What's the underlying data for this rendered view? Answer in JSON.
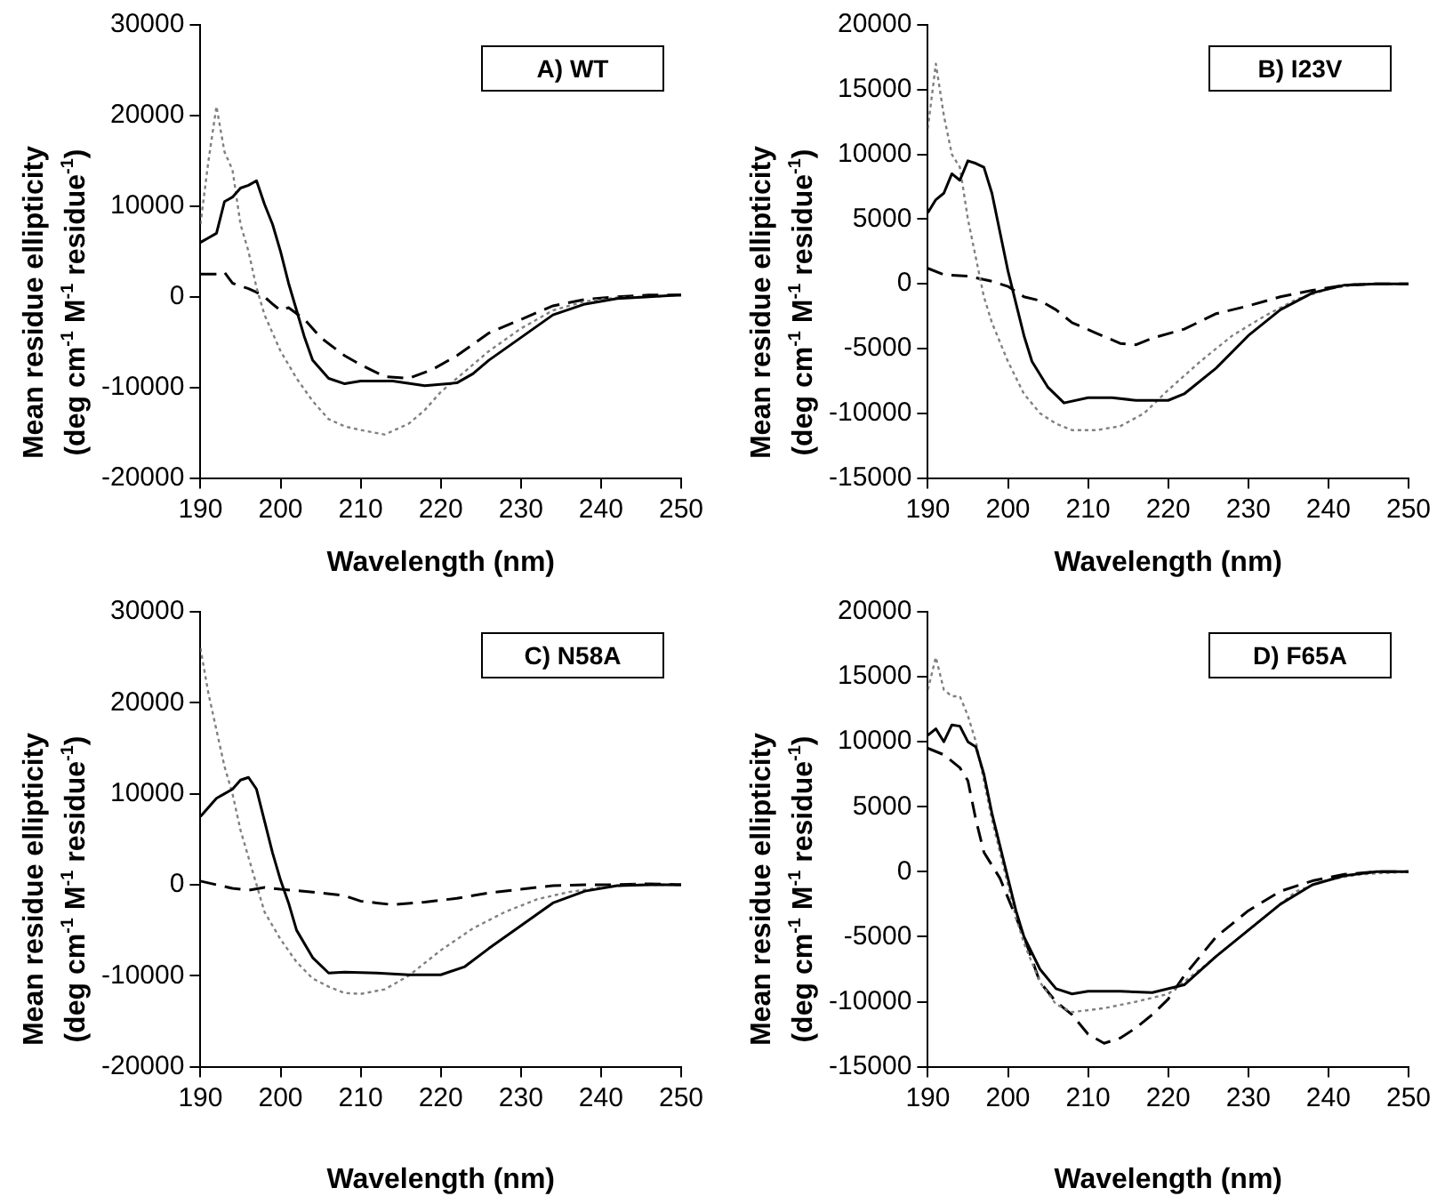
{
  "chart_data": [
    {
      "type": "line",
      "annotations": [
        "A) WT"
      ],
      "xlabel": "Wavelength (nm)",
      "ylabel": "Mean residue ellipticity\n(deg cm$^{-1}$ M$^{-1}$ residue$^{-1}$)",
      "xlim": [
        190,
        250
      ],
      "xticks": [
        190,
        200,
        210,
        220,
        230,
        240,
        250
      ],
      "ylim": [
        -20000,
        30000
      ],
      "yticks": [
        -20000,
        -10000,
        0,
        10000,
        20000,
        30000
      ],
      "grid": false,
      "legend": false,
      "marker": "none",
      "series": [
        {
          "color": "#000000",
          "line_style": "solid",
          "x": [
            190,
            191,
            192,
            193,
            194,
            195,
            196,
            197,
            198,
            199,
            200,
            201,
            202,
            203,
            204,
            206,
            208,
            210,
            214,
            218,
            222,
            224,
            226,
            230,
            234,
            238,
            242,
            246,
            250
          ],
          "values": [
            6000,
            6500,
            7000,
            10500,
            11000,
            12000,
            12300,
            12800,
            10200,
            8000,
            5000,
            1500,
            -1500,
            -4500,
            -7000,
            -9000,
            -9600,
            -9300,
            -9300,
            -9800,
            -9500,
            -8500,
            -7000,
            -4500,
            -2000,
            -800,
            -200,
            0,
            200
          ]
        },
        {
          "color": "#808080",
          "line_style": "dotted",
          "x": [
            190,
            191,
            192,
            193,
            194,
            195,
            196,
            197,
            198,
            199,
            200,
            202,
            204,
            206,
            208,
            210,
            213,
            216,
            218,
            220,
            222,
            226,
            230,
            234,
            238,
            242,
            246,
            250
          ],
          "values": [
            8000,
            15000,
            21000,
            16000,
            14000,
            8000,
            5000,
            1000,
            -2000,
            -4000,
            -6000,
            -9000,
            -11500,
            -13500,
            -14300,
            -14700,
            -15200,
            -14000,
            -12500,
            -10500,
            -9000,
            -6000,
            -3500,
            -1500,
            -500,
            -100,
            0,
            200
          ]
        },
        {
          "color": "#000000",
          "line_style": "dashed",
          "x": [
            190,
            192,
            193,
            194,
            196,
            197,
            198,
            199,
            200,
            201,
            203,
            205,
            208,
            210,
            213,
            216,
            219,
            222,
            226,
            230,
            234,
            238,
            242,
            246,
            250
          ],
          "values": [
            2500,
            2500,
            2700,
            1500,
            900,
            500,
            0,
            -800,
            -1500,
            -1200,
            -2500,
            -4500,
            -6500,
            -7500,
            -8800,
            -9000,
            -8000,
            -6500,
            -4000,
            -2500,
            -1000,
            -300,
            0,
            200,
            200
          ]
        }
      ]
    },
    {
      "type": "line",
      "annotations": [
        "B) I23V"
      ],
      "xlabel": "Wavelength (nm)",
      "ylabel": "Mean residue ellipticity\n(deg cm$^{-1}$ M$^{-1}$ residue$^{-1}$)",
      "xlim": [
        190,
        250
      ],
      "xticks": [
        190,
        200,
        210,
        220,
        230,
        240,
        250
      ],
      "ylim": [
        -15000,
        20000
      ],
      "yticks": [
        -15000,
        -10000,
        -5000,
        0,
        5000,
        10000,
        15000,
        20000
      ],
      "grid": false,
      "legend": false,
      "marker": "none",
      "series": [
        {
          "color": "#000000",
          "line_style": "solid",
          "x": [
            190,
            191,
            192,
            193,
            194,
            195,
            196,
            197,
            198,
            199,
            200,
            201,
            202,
            203,
            205,
            207,
            210,
            213,
            216,
            220,
            222,
            226,
            230,
            234,
            238,
            242,
            246,
            250
          ],
          "values": [
            5500,
            6500,
            7000,
            8500,
            8000,
            9500,
            9300,
            9000,
            7000,
            4000,
            1000,
            -1500,
            -4000,
            -6000,
            -8000,
            -9200,
            -8800,
            -8800,
            -9000,
            -9000,
            -8500,
            -6500,
            -4000,
            -2000,
            -700,
            -100,
            0,
            0
          ]
        },
        {
          "color": "#808080",
          "line_style": "dotted",
          "x": [
            190,
            191,
            192,
            193,
            194,
            195,
            196,
            197,
            198,
            199,
            200,
            202,
            204,
            206,
            208,
            211,
            214,
            217,
            220,
            224,
            228,
            232,
            236,
            240,
            244,
            250
          ],
          "values": [
            12000,
            17000,
            13000,
            10000,
            9000,
            5000,
            2000,
            -1000,
            -3000,
            -4500,
            -6000,
            -8500,
            -10000,
            -10800,
            -11300,
            -11300,
            -11000,
            -10000,
            -8200,
            -6000,
            -4000,
            -2500,
            -1200,
            -400,
            0,
            0
          ]
        },
        {
          "color": "#000000",
          "line_style": "dashed",
          "x": [
            190,
            192,
            195,
            198,
            200,
            202,
            204,
            206,
            208,
            211,
            214,
            216,
            218,
            222,
            226,
            230,
            234,
            238,
            242,
            246,
            250
          ],
          "values": [
            1200,
            700,
            600,
            200,
            -200,
            -1000,
            -1300,
            -2000,
            -3000,
            -3800,
            -4600,
            -4700,
            -4200,
            -3500,
            -2300,
            -1700,
            -1000,
            -500,
            -100,
            0,
            0
          ]
        }
      ]
    },
    {
      "type": "line",
      "annotations": [
        "C) N58A"
      ],
      "xlabel": "Wavelength (nm)",
      "ylabel": "Mean residue ellipticity\n(deg cm$^{-1}$ M$^{-1}$ residue$^{-1}$)",
      "xlim": [
        190,
        250
      ],
      "xticks": [
        190,
        200,
        210,
        220,
        230,
        240,
        250
      ],
      "ylim": [
        -20000,
        30000
      ],
      "yticks": [
        -20000,
        -10000,
        0,
        10000,
        20000,
        30000
      ],
      "grid": false,
      "legend": false,
      "marker": "none",
      "series": [
        {
          "color": "#000000",
          "line_style": "solid",
          "x": [
            190,
            191,
            192,
            193,
            194,
            195,
            196,
            197,
            198,
            199,
            200,
            201,
            202,
            204,
            206,
            208,
            212,
            216,
            220,
            223,
            226,
            230,
            234,
            238,
            242,
            246,
            250
          ],
          "values": [
            7500,
            8500,
            9500,
            10000,
            10500,
            11500,
            11800,
            10500,
            7000,
            3500,
            500,
            -2000,
            -5000,
            -8000,
            -9700,
            -9600,
            -9700,
            -9900,
            -9900,
            -9000,
            -7000,
            -4500,
            -2000,
            -700,
            -100,
            0,
            0
          ]
        },
        {
          "color": "#808080",
          "line_style": "dotted",
          "x": [
            190,
            191,
            192,
            193,
            194,
            195,
            196,
            197,
            198,
            200,
            202,
            204,
            206,
            208,
            210,
            213,
            216,
            220,
            224,
            228,
            232,
            236,
            240,
            244,
            250
          ],
          "values": [
            26000,
            21000,
            17000,
            13000,
            10000,
            6000,
            3000,
            0,
            -3000,
            -6000,
            -8500,
            -10300,
            -11200,
            -11900,
            -12000,
            -11500,
            -10000,
            -7200,
            -4800,
            -3000,
            -1600,
            -800,
            -300,
            0,
            0
          ]
        },
        {
          "color": "#000000",
          "line_style": "dashed",
          "x": [
            190,
            192,
            194,
            196,
            198,
            200,
            204,
            208,
            210,
            212,
            214,
            218,
            222,
            226,
            230,
            234,
            238,
            242,
            246,
            250
          ],
          "values": [
            400,
            0,
            -400,
            -600,
            -300,
            -500,
            -800,
            -1200,
            -1800,
            -2000,
            -2200,
            -1900,
            -1500,
            -900,
            -500,
            -100,
            0,
            0,
            100,
            0
          ]
        }
      ]
    },
    {
      "type": "line",
      "annotations": [
        "D) F65A"
      ],
      "xlabel": "Wavelength (nm)",
      "ylabel": "Mean residue ellipticity\n(deg cm$^{-1}$ M$^{-1}$ residue$^{-1}$)",
      "xlim": [
        190,
        250
      ],
      "xticks": [
        190,
        200,
        210,
        220,
        230,
        240,
        250
      ],
      "ylim": [
        -15000,
        20000
      ],
      "yticks": [
        -15000,
        -10000,
        -5000,
        0,
        5000,
        10000,
        15000,
        20000
      ],
      "grid": false,
      "legend": false,
      "marker": "none",
      "series": [
        {
          "color": "#000000",
          "line_style": "solid",
          "x": [
            190,
            191,
            192,
            193,
            194,
            195,
            196,
            197,
            198,
            199,
            200,
            201,
            202,
            204,
            206,
            208,
            210,
            214,
            218,
            222,
            226,
            230,
            234,
            238,
            242,
            246,
            250
          ],
          "values": [
            10500,
            11000,
            10000,
            11300,
            11200,
            10000,
            9600,
            7500,
            4500,
            2000,
            -500,
            -3000,
            -5000,
            -7500,
            -9000,
            -9400,
            -9200,
            -9200,
            -9300,
            -8700,
            -6500,
            -4500,
            -2500,
            -1000,
            -300,
            0,
            0
          ]
        },
        {
          "color": "#808080",
          "line_style": "dotted",
          "x": [
            190,
            191,
            192,
            193,
            194,
            195,
            196,
            197,
            198,
            199,
            200,
            201,
            202,
            204,
            206,
            208,
            212,
            216,
            220,
            224,
            228,
            232,
            236,
            240,
            244,
            250
          ],
          "values": [
            14000,
            16500,
            14000,
            13500,
            13500,
            12000,
            10000,
            7000,
            4000,
            1500,
            -1000,
            -3500,
            -5500,
            -8500,
            -10200,
            -10800,
            -10500,
            -10000,
            -9400,
            -7500,
            -5500,
            -3500,
            -1500,
            -600,
            -200,
            0
          ]
        },
        {
          "color": "#000000",
          "line_style": "dashed",
          "x": [
            190,
            192,
            194,
            195,
            196,
            197,
            198,
            199,
            200,
            202,
            204,
            206,
            208,
            210,
            212,
            214,
            216,
            218,
            220,
            222,
            226,
            230,
            234,
            238,
            242,
            246,
            250
          ],
          "values": [
            9500,
            9000,
            8000,
            7000,
            4000,
            1500,
            500,
            -500,
            -2000,
            -5000,
            -8500,
            -10000,
            -11000,
            -12500,
            -13200,
            -12800,
            -12000,
            -11000,
            -9800,
            -8000,
            -5000,
            -3000,
            -1500,
            -700,
            -200,
            0,
            0
          ]
        }
      ]
    }
  ]
}
